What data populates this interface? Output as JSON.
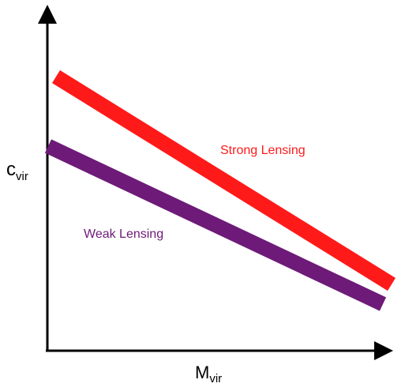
{
  "diagram": {
    "axes": {
      "y_label": {
        "main": "c",
        "sub": "vir"
      },
      "x_label": {
        "main": "M",
        "sub": "vir"
      },
      "color": "#000000"
    },
    "series": [
      {
        "key": "strong",
        "label": "Strong Lensing",
        "color": "#ff1a1a"
      },
      {
        "key": "weak",
        "label": "Weak Lensing",
        "color": "#6e1a78"
      }
    ]
  }
}
